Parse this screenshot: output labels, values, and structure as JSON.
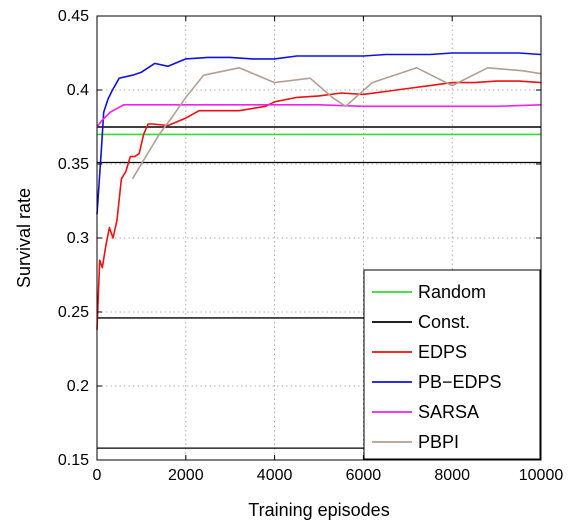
{
  "chart_data": {
    "type": "line",
    "title": "",
    "xlabel": "Training episodes",
    "ylabel": "Survival rate",
    "xlim": [
      0,
      10000
    ],
    "ylim": [
      0.15,
      0.45
    ],
    "xticks": [
      0,
      2000,
      4000,
      6000,
      8000,
      10000
    ],
    "xtick_labels": [
      "0",
      "2000",
      "4000",
      "6000",
      "8000",
      "10000"
    ],
    "yticks": [
      0.15,
      0.2,
      0.25,
      0.3,
      0.35,
      0.4,
      0.45
    ],
    "ytick_labels": [
      "0.15",
      "0.2",
      "0.25",
      "0.3",
      "0.35",
      "0.4",
      "0.45"
    ],
    "grid": true,
    "legend_position": "bottom-right",
    "series": [
      {
        "name": "Random",
        "color": "#33dd33",
        "x": [
          0,
          10000
        ],
        "y": [
          0.37,
          0.37
        ]
      },
      {
        "name": "Const.",
        "color": "#000000",
        "x": [
          0,
          10000
        ],
        "y": [
          0.375,
          0.375
        ]
      },
      {
        "name": "EDPS",
        "color": "#ee1111",
        "x": [
          0,
          60,
          120,
          200,
          280,
          360,
          450,
          550,
          650,
          750,
          850,
          950,
          1050,
          1150,
          1250,
          1600,
          2000,
          2300,
          2600,
          3200,
          3800,
          4000,
          4500,
          5000,
          5500,
          6000,
          6500,
          7000,
          7500,
          8000,
          8500,
          9000,
          9500,
          10000
        ],
        "y": [
          0.238,
          0.285,
          0.28,
          0.295,
          0.307,
          0.3,
          0.312,
          0.34,
          0.345,
          0.355,
          0.355,
          0.357,
          0.37,
          0.377,
          0.377,
          0.376,
          0.381,
          0.386,
          0.386,
          0.386,
          0.389,
          0.392,
          0.395,
          0.396,
          0.398,
          0.397,
          0.399,
          0.401,
          0.403,
          0.405,
          0.405,
          0.406,
          0.406,
          0.405
        ]
      },
      {
        "name": "PB−EDPS",
        "color": "#1111dd",
        "x": [
          0,
          100,
          150,
          250,
          350,
          500,
          800,
          1000,
          1300,
          1600,
          2000,
          2500,
          3000,
          3500,
          4000,
          4500,
          5000,
          5500,
          6000,
          6500,
          7000,
          7500,
          8000,
          8500,
          9000,
          9500,
          10000
        ],
        "y": [
          0.316,
          0.36,
          0.385,
          0.394,
          0.4,
          0.408,
          0.41,
          0.412,
          0.418,
          0.416,
          0.421,
          0.422,
          0.422,
          0.421,
          0.421,
          0.423,
          0.423,
          0.423,
          0.423,
          0.424,
          0.424,
          0.424,
          0.425,
          0.425,
          0.425,
          0.425,
          0.424
        ]
      },
      {
        "name": "SARSA",
        "color": "#ee22ee",
        "x": [
          0,
          100,
          300,
          600,
          1000,
          1500,
          2000,
          3000,
          4000,
          5000,
          6000,
          7000,
          8000,
          9000,
          10000
        ],
        "y": [
          0.375,
          0.379,
          0.385,
          0.39,
          0.39,
          0.39,
          0.39,
          0.39,
          0.39,
          0.39,
          0.389,
          0.389,
          0.389,
          0.389,
          0.39
        ]
      },
      {
        "name": "PBPI",
        "color": "#b39f93",
        "x": [
          800,
          1100,
          1400,
          1700,
          2000,
          2400,
          3200,
          4000,
          4800,
          5300,
          5600,
          6200,
          7000,
          7200,
          8000,
          8800,
          9600,
          10000
        ],
        "y": [
          0.34,
          0.355,
          0.37,
          0.382,
          0.395,
          0.41,
          0.415,
          0.405,
          0.408,
          0.395,
          0.389,
          0.405,
          0.413,
          0.415,
          0.403,
          0.415,
          0.413,
          0.411
        ]
      }
    ]
  }
}
